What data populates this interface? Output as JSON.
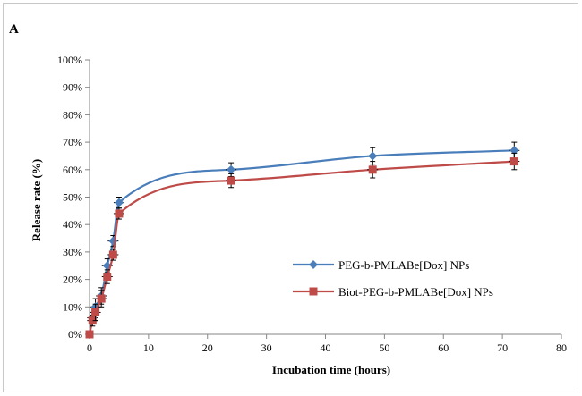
{
  "chart_data": {
    "type": "line",
    "panel_label": "A",
    "title": "",
    "xlabel": "Incubation time (hours)",
    "ylabel": "Release rate (%)",
    "xlim": [
      0,
      80
    ],
    "ylim": [
      0,
      100
    ],
    "x_ticks": [
      0,
      10,
      20,
      30,
      40,
      50,
      60,
      70,
      80
    ],
    "y_ticks": [
      "0%",
      "10%",
      "20%",
      "30%",
      "40%",
      "50%",
      "60%",
      "70%",
      "80%",
      "90%",
      "100%"
    ],
    "grid": false,
    "legend_position": "right",
    "series": [
      {
        "name": "PEG-b-PMLABe[Dox]  NPs",
        "color": "#4a7ebb",
        "marker": "diamond",
        "x": [
          0,
          0.5,
          1,
          2,
          3,
          4,
          5,
          24,
          48,
          72
        ],
        "y": [
          0,
          6,
          10,
          14,
          25,
          34,
          48,
          60,
          65,
          67
        ],
        "error": [
          0,
          2,
          3,
          3,
          2.5,
          2,
          2,
          2.5,
          3,
          3
        ]
      },
      {
        "name": "Biot-PEG-b-PMLABe[Dox]  NPs",
        "color": "#be4b48",
        "marker": "square",
        "x": [
          0,
          0.5,
          1,
          2,
          3,
          4,
          5,
          24,
          48,
          72
        ],
        "y": [
          0,
          5,
          8,
          13,
          21,
          29,
          44,
          56,
          60,
          63
        ],
        "error": [
          0,
          2,
          3,
          3,
          2.5,
          2,
          2,
          2.5,
          3,
          3
        ]
      }
    ]
  }
}
